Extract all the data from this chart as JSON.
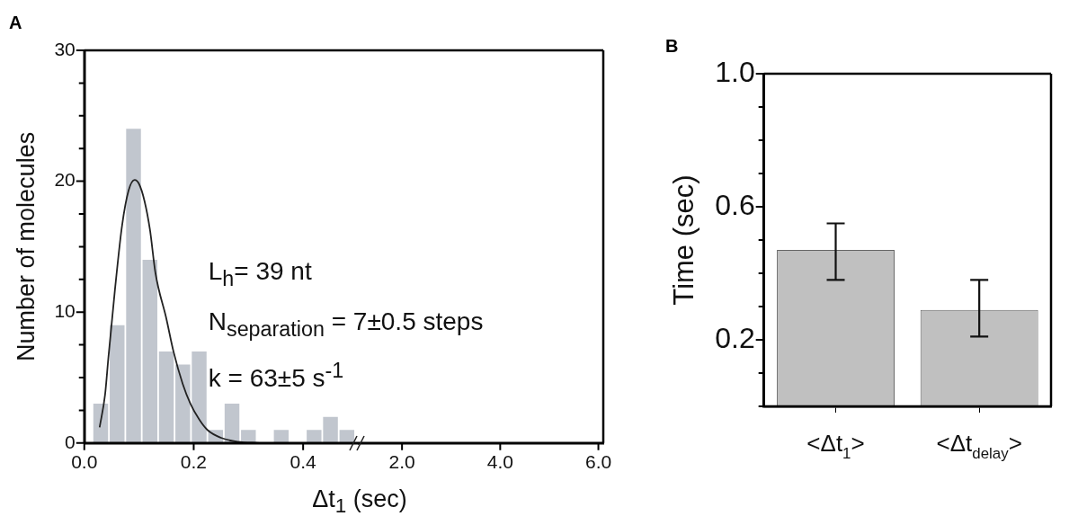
{
  "chart_data": [
    {
      "type": "histogram",
      "title": "A",
      "xlabel": "Δt$_{1}$ (sec)",
      "ylabel": "Number of molecules",
      "series": [
        {
          "type": "histogram",
          "color": "#c1c6ce",
          "bins": [
            0.015,
            0.045,
            0.075,
            0.105,
            0.135,
            0.165,
            0.195,
            0.225,
            0.255,
            0.285,
            0.315,
            0.345,
            0.375,
            0.405,
            0.435,
            0.465,
            0.495
          ],
          "values": [
            3,
            9,
            24,
            14,
            7,
            6,
            7,
            1,
            3,
            1,
            0,
            1,
            0,
            1,
            2,
            1
          ]
        },
        {
          "type": "line",
          "color": "#222222",
          "x": [
            0.028,
            0.038,
            0.044,
            0.056,
            0.069,
            0.081,
            0.092,
            0.1,
            0.11,
            0.12,
            0.13,
            0.15,
            0.163,
            0.18,
            0.194,
            0.21,
            0.225,
            0.25,
            0.28,
            0.32
          ],
          "values": [
            1.2,
            3.7,
            6.5,
            11.7,
            16.6,
            19.3,
            20.1,
            19.8,
            18.5,
            16.3,
            13,
            9.5,
            7,
            4.5,
            3,
            1.8,
            1,
            0.4,
            0.1,
            0
          ]
        }
      ],
      "marker": "none",
      "xlim": [
        0,
        0.5
      ],
      "xticks": [
        {
          "value": 0,
          "label": "0.0"
        },
        {
          "value": 0.2,
          "label": "0.2"
        },
        {
          "value": 0.4,
          "label": "0.4"
        }
      ],
      "ylim": [
        0,
        30
      ],
      "yticks": [
        0,
        {
          "value": 2.5,
          "label": null
        },
        {
          "value": 5,
          "label": null
        },
        {
          "value": 7.5,
          "label": null
        },
        10,
        {
          "value": 12.5,
          "label": null
        },
        {
          "value": 15,
          "label": null
        },
        {
          "value": 17.5,
          "label": null
        },
        20,
        {
          "value": 22.5,
          "label": null
        },
        {
          "value": 25,
          "label": null
        },
        {
          "value": 27.5,
          "label": null
        },
        30
      ],
      "grid": false,
      "annotations": [
        "L$_{h}$= 39 nt",
        "N$_{separation}$ = 7±0.5 steps",
        "k  = 63±5 s$^{-1}$"
      ]
    },
    {
      "type": "histogram",
      "xlim": [
        1.1,
        6.1
      ],
      "xticks": [
        {
          "value": 2,
          "label": "2.0"
        },
        {
          "value": 4,
          "label": "4.0"
        },
        {
          "value": 6,
          "label": "6.0"
        }
      ],
      "ylim": [
        0,
        30
      ],
      "tick_labels": "x",
      "grid": false
    },
    {
      "type": "bar",
      "title": "B",
      "ylabel": "Time (sec)",
      "categories": [
        "<Δt$_{1}$>",
        "<Δt$_{delay}$>"
      ],
      "values": [
        0.47,
        0.29
      ],
      "errors": [
        [
          0.38,
          0.55
        ],
        [
          0.21,
          0.38
        ]
      ],
      "color": "#c0c0c0",
      "ylim": [
        0,
        1
      ],
      "yticks": [
        {
          "value": 0,
          "label": null
        },
        {
          "value": 0.1,
          "label": null
        },
        0.2,
        {
          "value": 0.3,
          "label": null
        },
        {
          "value": 0.4,
          "label": null
        },
        {
          "value": 0.5,
          "label": null
        },
        0.6,
        {
          "value": 0.7,
          "label": null
        },
        {
          "value": 0.8,
          "label": null
        },
        {
          "value": 0.9,
          "label": null
        },
        {
          "value": 1,
          "label": "1.0"
        }
      ],
      "grid": false
    }
  ]
}
